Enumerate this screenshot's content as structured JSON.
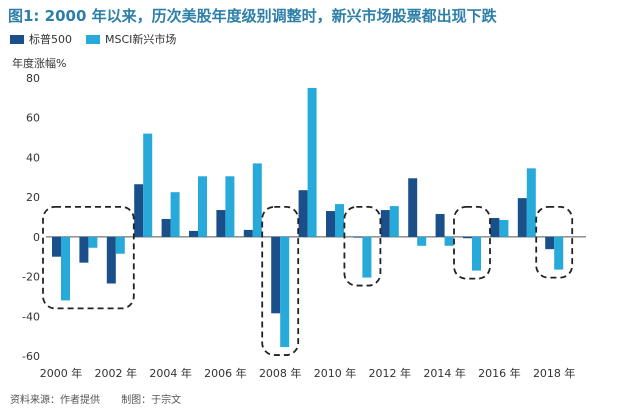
{
  "header": {
    "title": "图1: 2000 年以来，历次美股年度级别调整时，新兴市场股票都出现下跌"
  },
  "footer": {
    "source": "资料来源：作者提供",
    "producer": "制图：于宗文"
  },
  "chart_data": {
    "type": "bar",
    "title": "图1: 2000 年以来，历次美股年度级别调整时，新兴市场股票都出现下跌",
    "ylabel": "年度涨幅%",
    "xlabel": "",
    "ylim": [
      -60,
      80
    ],
    "yticks": [
      -60,
      -40,
      -20,
      0,
      20,
      40,
      60,
      80
    ],
    "categories": [
      "2000",
      "2001",
      "2002",
      "2003",
      "2004",
      "2005",
      "2006",
      "2007",
      "2008",
      "2009",
      "2010",
      "2011",
      "2012",
      "2013",
      "2014",
      "2015",
      "2016",
      "2017",
      "2018"
    ],
    "xtick_labels": [
      "2000 年",
      "2002 年",
      "2004 年",
      "2006 年",
      "2008 年",
      "2010 年",
      "2012 年",
      "2014 年",
      "2016 年",
      "2018 年"
    ],
    "series": [
      {
        "name": "标普500",
        "color": "#1b4f8a",
        "values": [
          -10,
          -13,
          -23.5,
          26.5,
          9,
          3,
          13.5,
          3.5,
          -38.5,
          23.5,
          13,
          0,
          13.5,
          29.5,
          11.5,
          -0.7,
          9.5,
          19.5,
          -6.2
        ]
      },
      {
        "name": "MSCI新兴市场",
        "color": "#27a9d9",
        "values": [
          -32,
          -5.5,
          -8.5,
          52,
          22.5,
          30.5,
          30.5,
          37,
          -55.5,
          75,
          16.5,
          -20.5,
          15.5,
          -4.5,
          -4.5,
          -17,
          8.5,
          34.5,
          -16.5
        ]
      }
    ],
    "highlight_groups": [
      {
        "label": "2000-2002",
        "from": 0,
        "to": 2
      },
      {
        "label": "2008",
        "from": 8,
        "to": 8
      },
      {
        "label": "2011",
        "from": 11,
        "to": 11
      },
      {
        "label": "2015",
        "from": 15,
        "to": 15
      },
      {
        "label": "2018",
        "from": 18,
        "to": 18
      }
    ],
    "grid": false,
    "legend_position": "top-left"
  }
}
